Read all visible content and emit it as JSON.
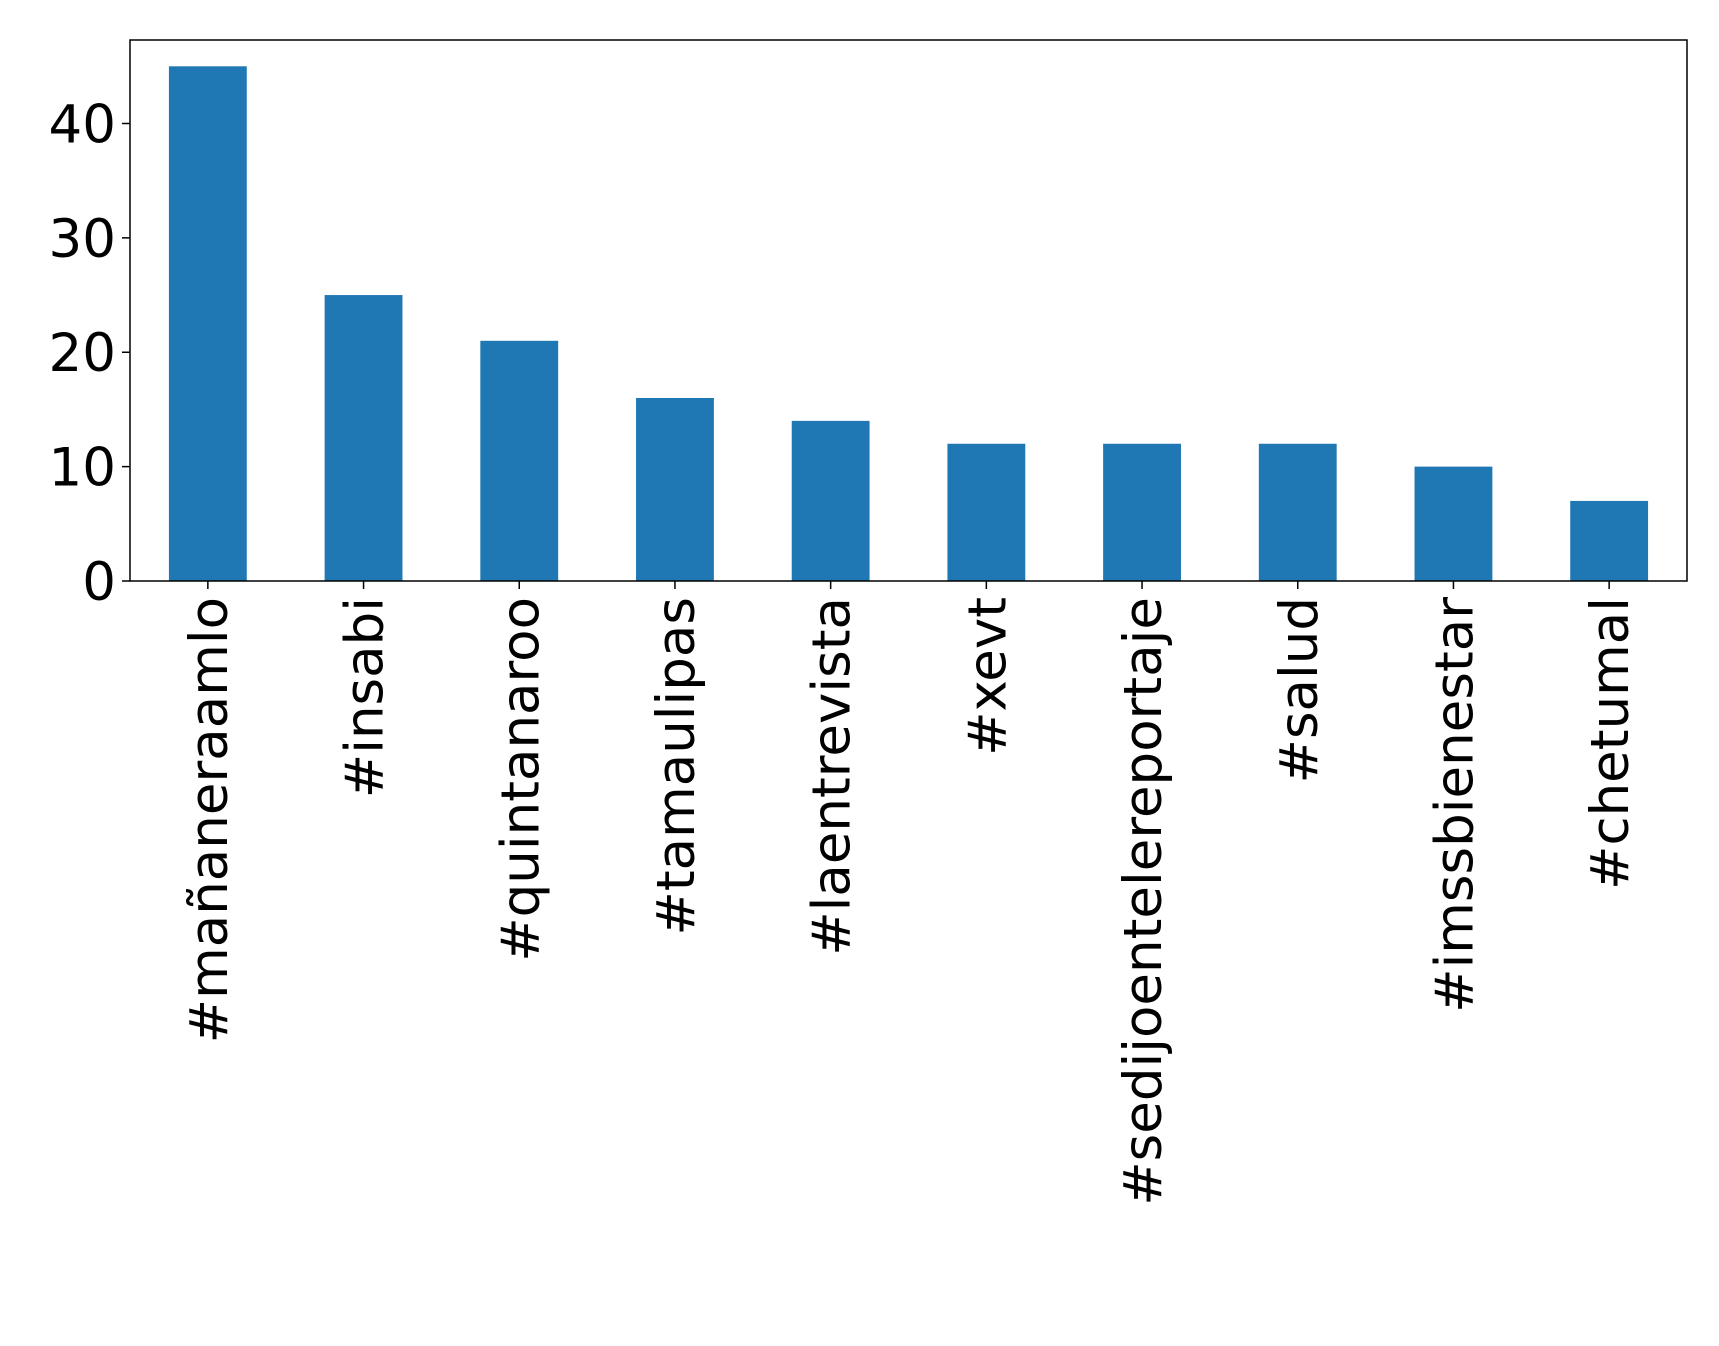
{
  "chart_data": {
    "type": "bar",
    "categories": [
      "#mañaneraamlo",
      "#insabi",
      "#quintanaroo",
      "#tamaulipas",
      "#laentrevista",
      "#xevt",
      "#sedijoentelereportaje",
      "#salud",
      "#imssbienestar",
      "#chetumal"
    ],
    "values": [
      45,
      25,
      21,
      16,
      14,
      12,
      12,
      12,
      10,
      7
    ],
    "color": "#1f77b4",
    "ylim": [
      0,
      47.3
    ],
    "yticks": [
      0,
      10,
      20,
      30,
      40
    ],
    "grid": false
  }
}
